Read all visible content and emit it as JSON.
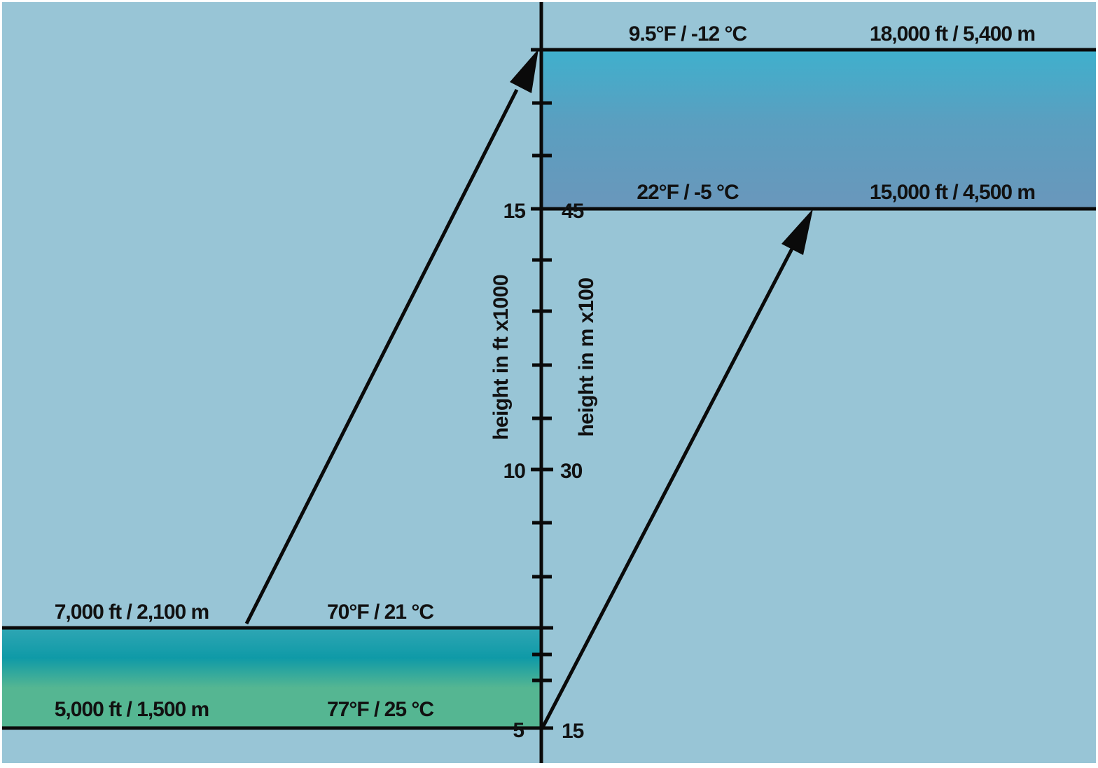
{
  "colors": {
    "background": "#98c5d6",
    "line": "#0a0a0a",
    "low_layer_top": "#0f9aa7",
    "low_layer_bottom": "#55b692",
    "high_layer_top": "#3fb0cd",
    "high_layer_bottom": "#6a97bb"
  },
  "left_axis": {
    "title": "height in ft x1000",
    "tick_labels": [
      "5",
      "10",
      "15"
    ]
  },
  "right_axis": {
    "title": "height in m x100",
    "tick_labels": [
      "15",
      "30",
      "45"
    ]
  },
  "low_layer": {
    "top_height": "7,000 ft / 2,100 m",
    "top_temp": "70°F / 21 °C",
    "bottom_height": "5,000 ft / 1,500 m",
    "bottom_temp": "77°F / 25 °C"
  },
  "high_layer": {
    "top_temp": "9.5°F / -12 °C",
    "top_height": "18,000 ft / 5,400 m",
    "bottom_temp": "22°F / -5 °C",
    "bottom_height": "15,000 ft / 4,500 m"
  }
}
